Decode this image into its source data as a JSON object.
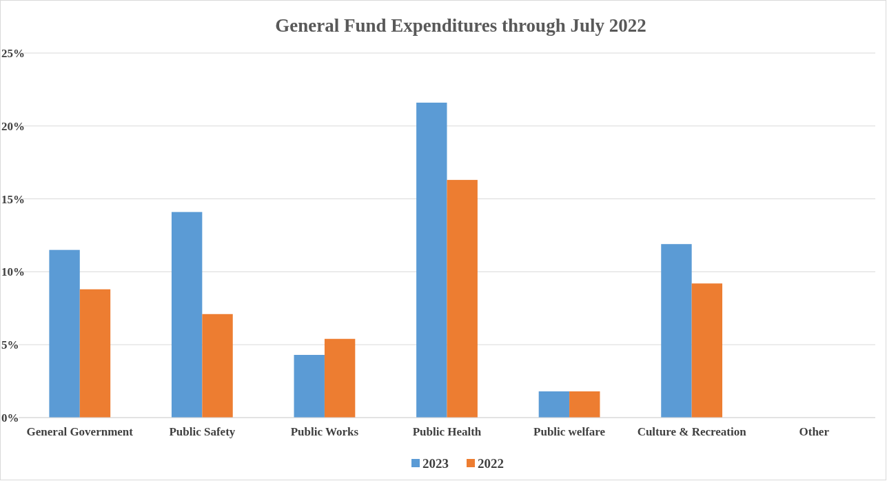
{
  "chart_data": {
    "type": "bar",
    "title": "General Fund Expenditures through July 2022",
    "categories": [
      "General Government",
      "Public Safety",
      "Public Works",
      "Public Health",
      "Public welfare",
      "Culture & Recreation",
      "Other"
    ],
    "series": [
      {
        "name": "2023",
        "color": "#5b9bd5",
        "values": [
          11.5,
          14.1,
          4.3,
          21.6,
          1.8,
          11.9,
          0
        ]
      },
      {
        "name": "2022",
        "color": "#ed7d31",
        "values": [
          8.8,
          7.1,
          5.4,
          16.3,
          1.8,
          9.2,
          0
        ]
      }
    ],
    "ylim": [
      0,
      25
    ],
    "yticks": [
      {
        "value": 0,
        "label": "0%"
      },
      {
        "value": 5,
        "label": "5%"
      },
      {
        "value": 10,
        "label": "10%"
      },
      {
        "value": 15,
        "label": "15%"
      },
      {
        "value": 20,
        "label": "20%"
      },
      {
        "value": 25,
        "label": "25%"
      }
    ],
    "grid": "y",
    "legend": "bottom"
  }
}
